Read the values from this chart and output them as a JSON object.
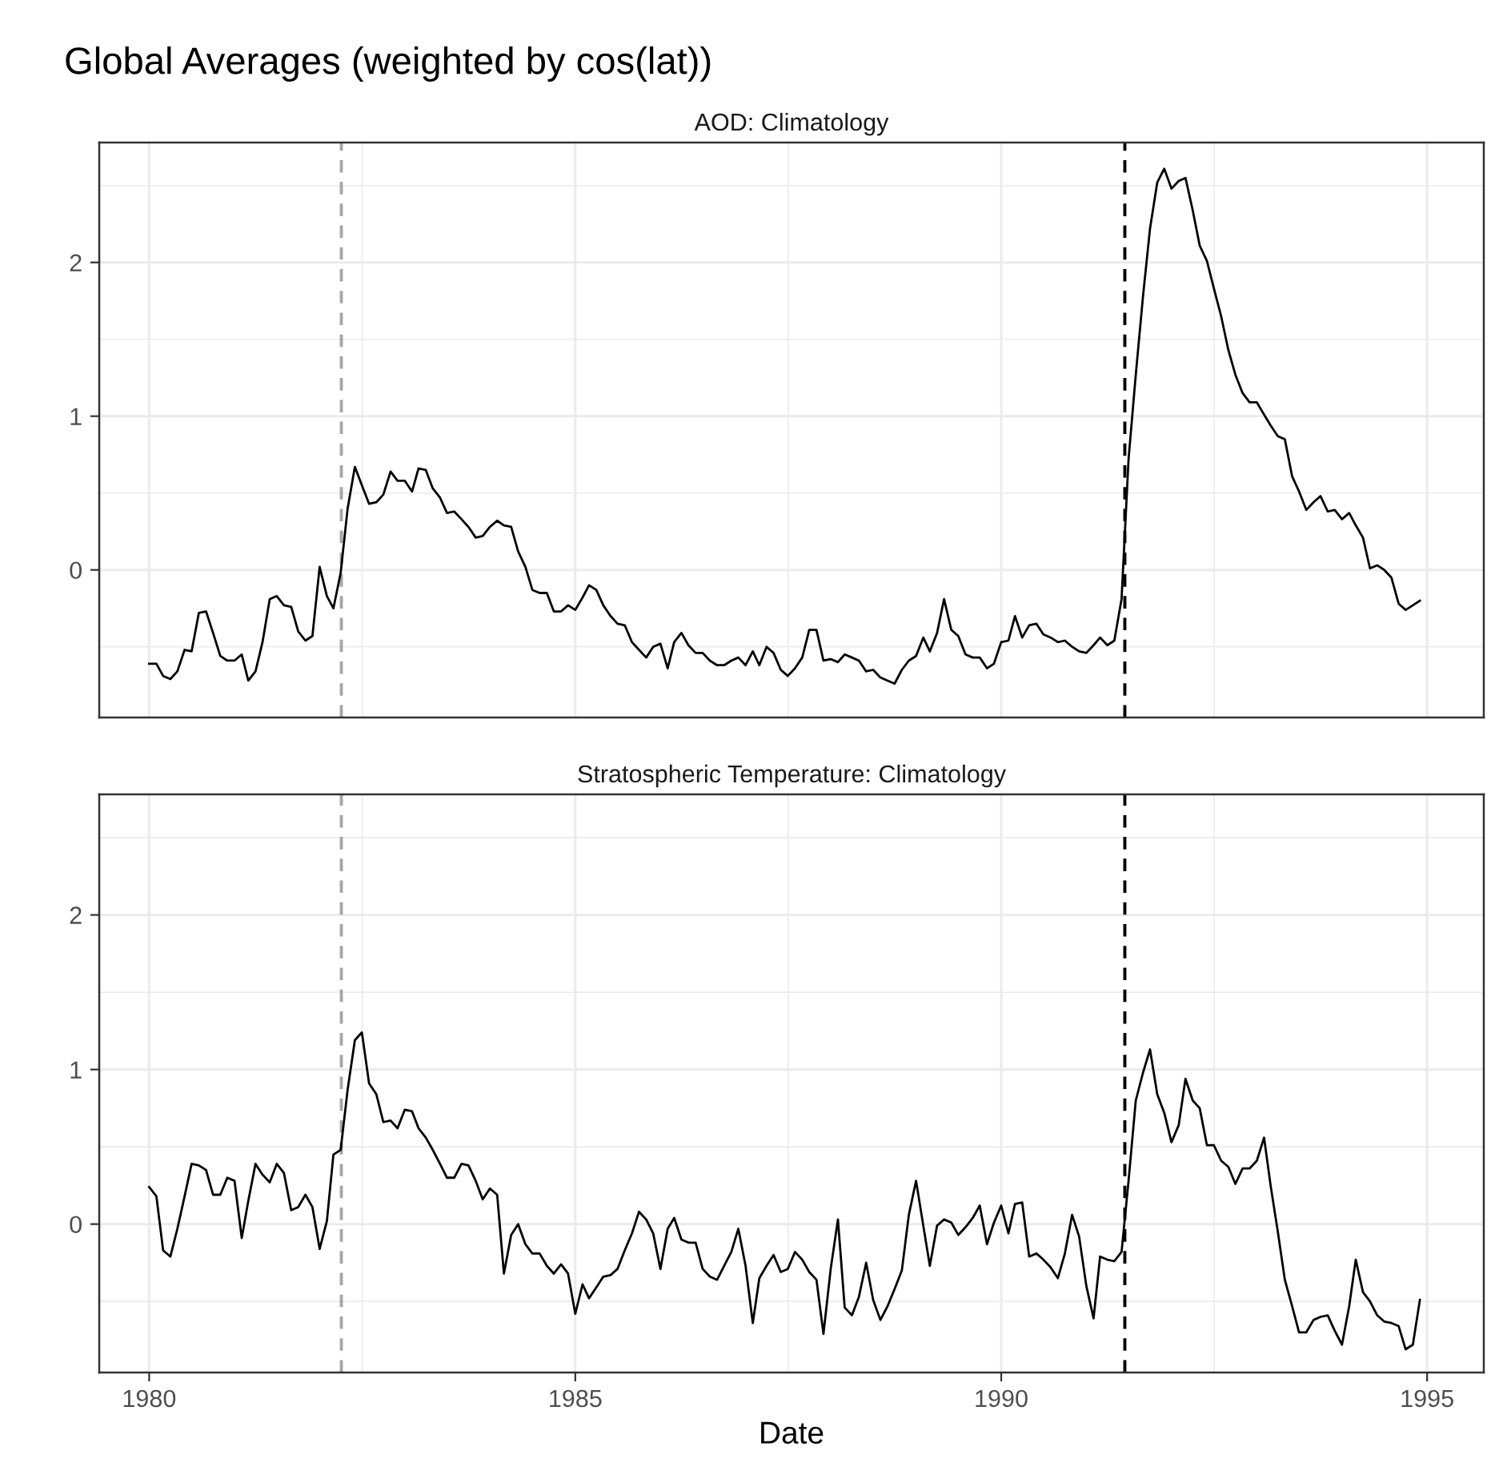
{
  "chart_data": [
    {
      "type": "line",
      "title": "Global Averages (weighted by cos(lat))",
      "subtitle": "AOD: Climatology",
      "x": [
        "1980-01",
        "1980-02",
        "1980-03",
        "1980-04",
        "1980-05",
        "1980-06",
        "1980-07",
        "1980-08",
        "1980-09",
        "1980-10",
        "1980-11",
        "1980-12",
        "1981-01",
        "1981-02",
        "1981-03",
        "1981-04",
        "1981-05",
        "1981-06",
        "1981-07",
        "1981-08",
        "1981-09",
        "1981-10",
        "1981-11",
        "1981-12",
        "1982-01",
        "1982-02",
        "1982-03",
        "1982-04",
        "1982-05",
        "1982-06",
        "1982-07",
        "1982-08",
        "1982-09",
        "1982-10",
        "1982-11",
        "1982-12",
        "1983-01",
        "1983-02",
        "1983-03",
        "1983-04",
        "1983-05",
        "1983-06",
        "1983-07",
        "1983-08",
        "1983-09",
        "1983-10",
        "1983-11",
        "1983-12",
        "1984-01",
        "1984-02",
        "1984-03",
        "1984-04",
        "1984-05",
        "1984-06",
        "1984-07",
        "1984-08",
        "1984-09",
        "1984-10",
        "1984-11",
        "1984-12",
        "1985-01",
        "1985-02",
        "1985-03",
        "1985-04",
        "1985-05",
        "1985-06",
        "1985-07",
        "1985-08",
        "1985-09",
        "1985-10",
        "1985-11",
        "1985-12",
        "1986-01",
        "1986-02",
        "1986-03",
        "1986-04",
        "1986-05",
        "1986-06",
        "1986-07",
        "1986-08",
        "1986-09",
        "1986-10",
        "1986-11",
        "1986-12",
        "1987-01",
        "1987-02",
        "1987-03",
        "1987-04",
        "1987-05",
        "1987-06",
        "1987-07",
        "1987-08",
        "1987-09",
        "1987-10",
        "1987-11",
        "1987-12",
        "1988-01",
        "1988-02",
        "1988-03",
        "1988-04",
        "1988-05",
        "1988-06",
        "1988-07",
        "1988-08",
        "1988-09",
        "1988-10",
        "1988-11",
        "1988-12",
        "1989-01",
        "1989-02",
        "1989-03",
        "1989-04",
        "1989-05",
        "1989-06",
        "1989-07",
        "1989-08",
        "1989-09",
        "1989-10",
        "1989-11",
        "1989-12",
        "1990-01",
        "1990-02",
        "1990-03",
        "1990-04",
        "1990-05",
        "1990-06",
        "1990-07",
        "1990-08",
        "1990-09",
        "1990-10",
        "1990-11",
        "1990-12",
        "1991-01",
        "1991-02",
        "1991-03",
        "1991-04",
        "1991-05",
        "1991-06",
        "1991-07",
        "1991-08",
        "1991-09",
        "1991-10",
        "1991-11",
        "1991-12",
        "1992-01",
        "1992-02",
        "1992-03",
        "1992-04",
        "1992-05",
        "1992-06",
        "1992-07",
        "1992-08",
        "1992-09",
        "1992-10",
        "1992-11",
        "1992-12",
        "1993-01",
        "1993-02",
        "1993-03",
        "1993-04",
        "1993-05",
        "1993-06",
        "1993-07",
        "1993-08",
        "1993-09",
        "1993-10",
        "1993-11",
        "1993-12",
        "1994-01",
        "1994-02",
        "1994-03",
        "1994-04",
        "1994-05",
        "1994-06",
        "1994-07",
        "1994-08",
        "1994-09",
        "1994-10",
        "1994-11",
        "1994-12"
      ],
      "values": [
        -0.61,
        -0.61,
        -0.69,
        -0.71,
        -0.66,
        -0.52,
        -0.53,
        -0.28,
        -0.27,
        -0.41,
        -0.56,
        -0.59,
        -0.59,
        -0.55,
        -0.72,
        -0.66,
        -0.47,
        -0.19,
        -0.17,
        -0.23,
        -0.24,
        -0.4,
        -0.46,
        -0.43,
        0.02,
        -0.17,
        -0.25,
        -0.02,
        0.4,
        0.67,
        0.55,
        0.43,
        0.44,
        0.49,
        0.64,
        0.58,
        0.58,
        0.51,
        0.66,
        0.65,
        0.53,
        0.47,
        0.37,
        0.38,
        0.33,
        0.28,
        0.21,
        0.22,
        0.28,
        0.32,
        0.29,
        0.28,
        0.12,
        0.02,
        -0.13,
        -0.15,
        -0.15,
        -0.27,
        -0.27,
        -0.23,
        -0.26,
        -0.18,
        -0.1,
        -0.13,
        -0.23,
        -0.3,
        -0.35,
        -0.36,
        -0.47,
        -0.52,
        -0.57,
        -0.5,
        -0.48,
        -0.64,
        -0.47,
        -0.41,
        -0.49,
        -0.54,
        -0.54,
        -0.59,
        -0.62,
        -0.62,
        -0.59,
        -0.57,
        -0.62,
        -0.53,
        -0.62,
        -0.5,
        -0.54,
        -0.65,
        -0.69,
        -0.64,
        -0.57,
        -0.39,
        -0.39,
        -0.59,
        -0.58,
        -0.6,
        -0.55,
        -0.57,
        -0.59,
        -0.66,
        -0.65,
        -0.7,
        -0.72,
        -0.74,
        -0.65,
        -0.59,
        -0.56,
        -0.44,
        -0.53,
        -0.41,
        -0.19,
        -0.39,
        -0.43,
        -0.55,
        -0.57,
        -0.57,
        -0.64,
        -0.61,
        -0.47,
        -0.46,
        -0.3,
        -0.44,
        -0.36,
        -0.35,
        -0.42,
        -0.44,
        -0.47,
        -0.46,
        -0.5,
        -0.53,
        -0.54,
        -0.49,
        -0.44,
        -0.49,
        -0.46,
        -0.19,
        0.72,
        1.27,
        1.78,
        2.22,
        2.52,
        2.61,
        2.48,
        2.53,
        2.55,
        2.34,
        2.11,
        2.01,
        1.83,
        1.65,
        1.43,
        1.27,
        1.15,
        1.09,
        1.09,
        1.01,
        0.94,
        0.87,
        0.85,
        0.61,
        0.51,
        0.39,
        0.44,
        0.48,
        0.38,
        0.39,
        0.33,
        0.37,
        0.29,
        0.21,
        0.01,
        0.03,
        0.0,
        -0.05,
        -0.22,
        -0.26,
        -0.23,
        -0.2
      ],
      "color": "#000000",
      "xlim": [
        "1979-06",
        "1995-09"
      ],
      "xticks": [
        "1980",
        "1985",
        "1990",
        "1995"
      ],
      "ylim": [
        -0.96,
        2.78
      ],
      "yticks": [
        0,
        1,
        2
      ],
      "grid": true,
      "tick_labels": "y",
      "ref_lines": [
        {
          "axis": "x",
          "value": "1982-04-04",
          "color": "#a6a6a6",
          "line_style": "dashed"
        },
        {
          "axis": "x",
          "value": "1991-06-15",
          "color": "#000000",
          "line_style": "dashed"
        }
      ]
    },
    {
      "type": "line",
      "subtitle": "Stratospheric Temperature: Climatology",
      "xlabel": "Date",
      "x": [
        "1980-01",
        "1980-02",
        "1980-03",
        "1980-04",
        "1980-05",
        "1980-06",
        "1980-07",
        "1980-08",
        "1980-09",
        "1980-10",
        "1980-11",
        "1980-12",
        "1981-01",
        "1981-02",
        "1981-03",
        "1981-04",
        "1981-05",
        "1981-06",
        "1981-07",
        "1981-08",
        "1981-09",
        "1981-10",
        "1981-11",
        "1981-12",
        "1982-01",
        "1982-02",
        "1982-03",
        "1982-04",
        "1982-05",
        "1982-06",
        "1982-07",
        "1982-08",
        "1982-09",
        "1982-10",
        "1982-11",
        "1982-12",
        "1983-01",
        "1983-02",
        "1983-03",
        "1983-04",
        "1983-05",
        "1983-06",
        "1983-07",
        "1983-08",
        "1983-09",
        "1983-10",
        "1983-11",
        "1983-12",
        "1984-01",
        "1984-02",
        "1984-03",
        "1984-04",
        "1984-05",
        "1984-06",
        "1984-07",
        "1984-08",
        "1984-09",
        "1984-10",
        "1984-11",
        "1984-12",
        "1985-01",
        "1985-02",
        "1985-03",
        "1985-04",
        "1985-05",
        "1985-06",
        "1985-07",
        "1985-08",
        "1985-09",
        "1985-10",
        "1985-11",
        "1985-12",
        "1986-01",
        "1986-02",
        "1986-03",
        "1986-04",
        "1986-05",
        "1986-06",
        "1986-07",
        "1986-08",
        "1986-09",
        "1986-10",
        "1986-11",
        "1986-12",
        "1987-01",
        "1987-02",
        "1987-03",
        "1987-04",
        "1987-05",
        "1987-06",
        "1987-07",
        "1987-08",
        "1987-09",
        "1987-10",
        "1987-11",
        "1987-12",
        "1988-01",
        "1988-02",
        "1988-03",
        "1988-04",
        "1988-05",
        "1988-06",
        "1988-07",
        "1988-08",
        "1988-09",
        "1988-10",
        "1988-11",
        "1988-12",
        "1989-01",
        "1989-02",
        "1989-03",
        "1989-04",
        "1989-05",
        "1989-06",
        "1989-07",
        "1989-08",
        "1989-09",
        "1989-10",
        "1989-11",
        "1989-12",
        "1990-01",
        "1990-02",
        "1990-03",
        "1990-04",
        "1990-05",
        "1990-06",
        "1990-07",
        "1990-08",
        "1990-09",
        "1990-10",
        "1990-11",
        "1990-12",
        "1991-01",
        "1991-02",
        "1991-03",
        "1991-04",
        "1991-05",
        "1991-06",
        "1991-07",
        "1991-08",
        "1991-09",
        "1991-10",
        "1991-11",
        "1991-12",
        "1992-01",
        "1992-02",
        "1992-03",
        "1992-04",
        "1992-05",
        "1992-06",
        "1992-07",
        "1992-08",
        "1992-09",
        "1992-10",
        "1992-11",
        "1992-12",
        "1993-01",
        "1993-02",
        "1993-03",
        "1993-04",
        "1993-05",
        "1993-06",
        "1993-07",
        "1993-08",
        "1993-09",
        "1993-10",
        "1993-11",
        "1993-12",
        "1994-01",
        "1994-02",
        "1994-03",
        "1994-04",
        "1994-05",
        "1994-06",
        "1994-07",
        "1994-08",
        "1994-09",
        "1994-10",
        "1994-11",
        "1994-12"
      ],
      "values": [
        0.24,
        0.18,
        -0.17,
        -0.21,
        -0.03,
        0.18,
        0.39,
        0.38,
        0.35,
        0.19,
        0.19,
        0.3,
        0.28,
        -0.09,
        0.15,
        0.39,
        0.32,
        0.27,
        0.39,
        0.33,
        0.09,
        0.11,
        0.19,
        0.11,
        -0.16,
        0.02,
        0.45,
        0.48,
        0.87,
        1.19,
        1.24,
        0.91,
        0.84,
        0.66,
        0.67,
        0.62,
        0.74,
        0.73,
        0.62,
        0.56,
        0.48,
        0.39,
        0.3,
        0.3,
        0.39,
        0.38,
        0.28,
        0.16,
        0.23,
        0.19,
        -0.32,
        -0.07,
        0.0,
        -0.13,
        -0.19,
        -0.19,
        -0.27,
        -0.32,
        -0.26,
        -0.32,
        -0.58,
        -0.39,
        -0.48,
        -0.41,
        -0.34,
        -0.33,
        -0.29,
        -0.17,
        -0.06,
        0.08,
        0.03,
        -0.06,
        -0.29,
        -0.03,
        0.04,
        -0.1,
        -0.12,
        -0.12,
        -0.29,
        -0.34,
        -0.36,
        -0.27,
        -0.18,
        -0.03,
        -0.27,
        -0.64,
        -0.35,
        -0.27,
        -0.2,
        -0.31,
        -0.29,
        -0.18,
        -0.23,
        -0.31,
        -0.36,
        -0.71,
        -0.29,
        0.03,
        -0.54,
        -0.59,
        -0.47,
        -0.25,
        -0.49,
        -0.62,
        -0.53,
        -0.42,
        -0.3,
        0.06,
        0.28,
        -0.01,
        -0.27,
        -0.01,
        0.03,
        0.01,
        -0.07,
        -0.02,
        0.04,
        0.12,
        -0.13,
        0.01,
        0.12,
        -0.06,
        0.13,
        0.14,
        -0.21,
        -0.19,
        -0.23,
        -0.28,
        -0.35,
        -0.19,
        0.06,
        -0.08,
        -0.4,
        -0.61,
        -0.21,
        -0.23,
        -0.24,
        -0.18,
        0.28,
        0.8,
        0.98,
        1.13,
        0.84,
        0.72,
        0.53,
        0.64,
        0.94,
        0.8,
        0.75,
        0.51,
        0.51,
        0.41,
        0.37,
        0.26,
        0.36,
        0.36,
        0.41,
        0.56,
        0.25,
        -0.05,
        -0.36,
        -0.53,
        -0.7,
        -0.7,
        -0.62,
        -0.6,
        -0.59,
        -0.69,
        -0.78,
        -0.53,
        -0.23,
        -0.44,
        -0.5,
        -0.59,
        -0.63,
        -0.64,
        -0.66,
        -0.81,
        -0.78,
        -0.49
      ],
      "color": "#000000",
      "xlim": [
        "1979-06",
        "1995-09"
      ],
      "xticks": [
        "1980",
        "1985",
        "1990",
        "1995"
      ],
      "ylim": [
        -0.96,
        2.78
      ],
      "yticks": [
        0,
        1,
        2
      ],
      "grid": true,
      "ref_lines": [
        {
          "axis": "x",
          "value": "1982-04-04",
          "color": "#a6a6a6",
          "line_style": "dashed"
        },
        {
          "axis": "x",
          "value": "1991-06-15",
          "color": "#000000",
          "line_style": "dashed"
        }
      ]
    }
  ]
}
